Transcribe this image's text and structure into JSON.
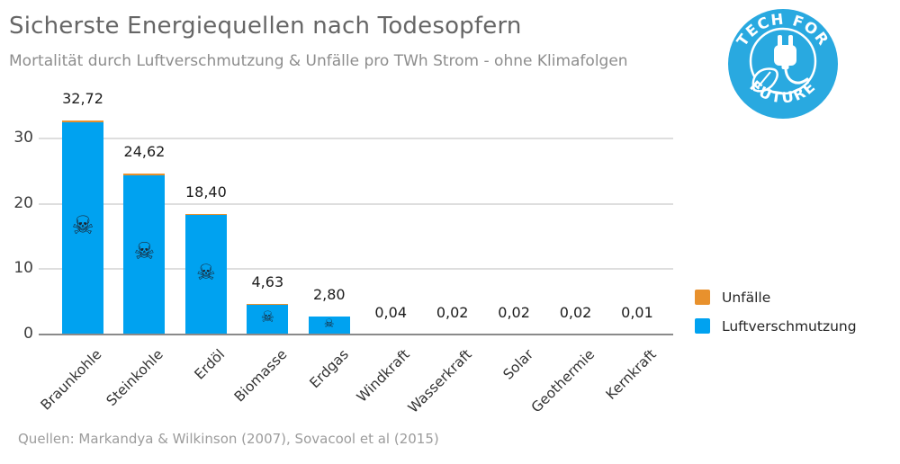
{
  "header": {
    "title": "Sicherste Energiequellen nach Todesopfern",
    "subtitle": "Mortalität durch Luftverschmutzung & Unfälle pro TWh Strom - ohne Klimafolgen"
  },
  "logo": {
    "top_text": "TECH FOR",
    "bottom_text": "FUTURE",
    "color": "#29A9E0",
    "icon": "power-plug-with-leaf"
  },
  "chart_data": {
    "type": "bar",
    "stacked": true,
    "categories": [
      "Braunkohle",
      "Steinkohle",
      "Erdöl",
      "Biomasse",
      "Erdgas",
      "Windkraft",
      "Wasserkraft",
      "Solar",
      "Geothermie",
      "Kernkraft"
    ],
    "series": [
      {
        "name": "Unfälle",
        "color": "#E8912D",
        "values": [
          0.3,
          0.28,
          0.1,
          0.02,
          0.01,
          0,
          0,
          0,
          0,
          0
        ]
      },
      {
        "name": "Luftverschmutzung",
        "color": "#00A2F0",
        "values": [
          32.42,
          24.34,
          18.3,
          4.61,
          2.79,
          0.04,
          0.02,
          0.02,
          0.02,
          0.01
        ]
      }
    ],
    "totals": [
      32.72,
      24.62,
      18.4,
      4.63,
      2.8,
      0.04,
      0.02,
      0.02,
      0.02,
      0.01
    ],
    "value_labels": [
      "32,72",
      "24,62",
      "18,40",
      "4,63",
      "2,80",
      "0,04",
      "0,02",
      "0,02",
      "0,02",
      "0,01"
    ],
    "yticks": [
      0,
      10,
      20,
      30
    ],
    "ylim": [
      0,
      33
    ],
    "xlabel": "",
    "ylabel": "",
    "grid": true,
    "legend_position": "right",
    "skull_icon": "☠",
    "skull_sizes": [
      28,
      26,
      24,
      17,
      13,
      0,
      0,
      0,
      0,
      0
    ]
  },
  "footer": {
    "source": "Quellen: Markandya & Wilkinson (2007), Sovacool et al (2015)"
  }
}
